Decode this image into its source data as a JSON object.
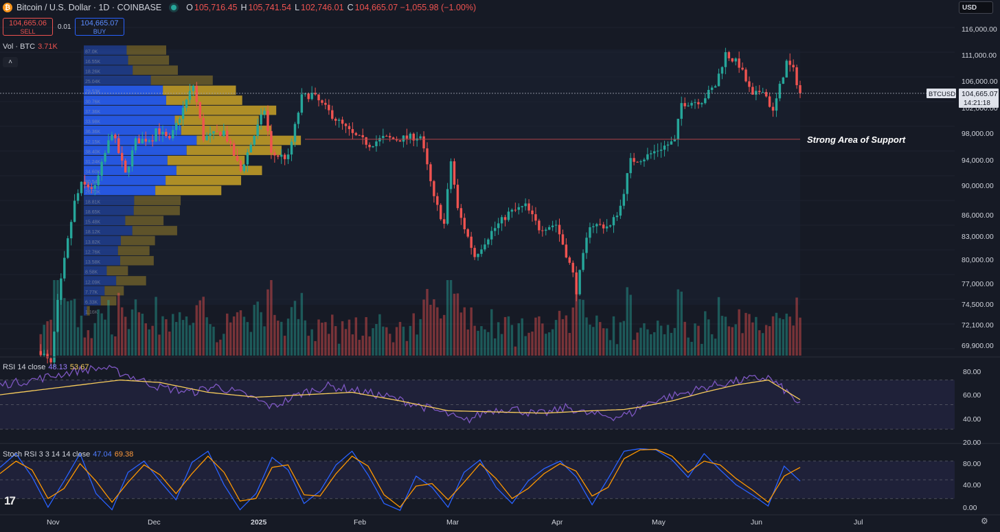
{
  "header": {
    "logo_letter": "₿",
    "symbol": "Bitcoin / U.S. Dollar · 1D · COINBASE",
    "ohlc": [
      {
        "key": "O",
        "value": "105,716.45"
      },
      {
        "key": "H",
        "value": "105,741.54"
      },
      {
        "key": "L",
        "value": "102,746.01"
      },
      {
        "key": "C",
        "value": "104,665.07 −1,055.98 (−1.00%)"
      }
    ]
  },
  "trade": {
    "sell_price": "104,665.06",
    "sell_label": "SELL",
    "spread": "0.01",
    "buy_price": "104,665.07",
    "buy_label": "BUY"
  },
  "volume_label": {
    "name": "Vol · BTC",
    "value": "3.71K"
  },
  "collapse_icon": "˄",
  "currency_button": "USD",
  "price_tag": {
    "symbol": "BTCUSD",
    "price": "104,665.07",
    "countdown": "14:21:18"
  },
  "annotation": "Strong Area of Support",
  "rsi_label": {
    "name": "RSI 14 close",
    "rsi": "48.13",
    "ma": "53.67"
  },
  "stoch_label": {
    "name": "Stoch RSI 3 3 14 14 close",
    "k": "47.04",
    "d": "69.38"
  },
  "tv_logo": "17",
  "settings_icon": "⚙",
  "colors": {
    "up": "#26a69a",
    "down": "#ef5350",
    "background": "#161a25",
    "rsi": "#7e57c2",
    "rsi_ma": "#f9cd5c",
    "stoch_k": "#2962ff",
    "stoch_d": "#ff9800",
    "vp_up": "#2962ff",
    "vp_down": "#c9a227",
    "support": "#b2434a"
  },
  "chart_data": [
    {
      "type": "candlestick",
      "title": "Bitcoin / U.S. Dollar · 1D · COINBASE",
      "y_scale": "log",
      "x_tick_labels": [
        "Nov",
        "Dec",
        "2025",
        "Feb",
        "Mar",
        "Apr",
        "May",
        "Jun",
        "Jul"
      ],
      "y_tick_labels": [
        "116,000.00",
        "111,000.00",
        "106,000.00",
        "102,000.00",
        "98,000.00",
        "94,000.00",
        "90,000.00",
        "86,000.00",
        "83,000.00",
        "80,000.00",
        "77,000.00",
        "74,500.00",
        "72,100.00",
        "69,900.00"
      ],
      "ylim": [
        69000,
        118000
      ],
      "last_price": 104665.07,
      "support_level": 97300,
      "anchors": [
        [
          "2024-11-01",
          69500
        ],
        [
          "2024-11-04",
          68000
        ],
        [
          "2024-11-06",
          75000
        ],
        [
          "2024-11-11",
          88000
        ],
        [
          "2024-11-13",
          90500
        ],
        [
          "2024-11-17",
          90000
        ],
        [
          "2024-11-22",
          98500
        ],
        [
          "2024-11-26",
          92000
        ],
        [
          "2024-11-29",
          97000
        ],
        [
          "2024-12-04",
          97500
        ],
        [
          "2024-12-05",
          99000
        ],
        [
          "2024-12-09",
          97000
        ],
        [
          "2024-12-16",
          106000
        ],
        [
          "2024-12-19",
          97500
        ],
        [
          "2024-12-25",
          98500
        ],
        [
          "2024-12-30",
          92500
        ],
        [
          "2025-01-06",
          102000
        ],
        [
          "2025-01-08",
          95000
        ],
        [
          "2025-01-13",
          94500
        ],
        [
          "2025-01-17",
          104000
        ],
        [
          "2025-01-20",
          104500
        ],
        [
          "2025-01-27",
          100500
        ],
        [
          "2025-02-01",
          98000
        ],
        [
          "2025-02-06",
          96500
        ],
        [
          "2025-02-10",
          97500
        ],
        [
          "2025-02-14",
          97300
        ],
        [
          "2025-02-21",
          97800
        ],
        [
          "2025-02-25",
          88500
        ],
        [
          "2025-02-28",
          85000
        ],
        [
          "2025-03-02",
          94000
        ],
        [
          "2025-03-04",
          87000
        ],
        [
          "2025-03-09",
          80800
        ],
        [
          "2025-03-14",
          84000
        ],
        [
          "2025-03-19",
          86500
        ],
        [
          "2025-03-24",
          87500
        ],
        [
          "2025-03-28",
          84500
        ],
        [
          "2025-04-02",
          85000
        ],
        [
          "2025-04-07",
          78500
        ],
        [
          "2025-04-08",
          76500
        ],
        [
          "2025-04-12",
          85000
        ],
        [
          "2025-04-18",
          84700
        ],
        [
          "2025-04-21",
          87500
        ],
        [
          "2025-04-24",
          94000
        ],
        [
          "2025-04-28",
          94500
        ],
        [
          "2025-05-03",
          96000
        ],
        [
          "2025-05-07",
          97000
        ],
        [
          "2025-05-09",
          103000
        ],
        [
          "2025-05-15",
          103500
        ],
        [
          "2025-05-19",
          106000
        ],
        [
          "2025-05-22",
          111500
        ],
        [
          "2025-05-26",
          109500
        ],
        [
          "2025-05-30",
          104000
        ],
        [
          "2025-06-02",
          105500
        ],
        [
          "2025-06-05",
          101500
        ],
        [
          "2025-06-09",
          110000
        ],
        [
          "2025-06-11",
          108500
        ],
        [
          "2025-06-13",
          104665
        ]
      ],
      "volume_profile_rows": [
        "87.0K",
        "16.55K",
        "18.26K",
        "25.04K",
        "29.53K",
        "30.76K",
        "37.36K",
        "33.98K",
        "36.36K",
        "42.15K",
        "38.40K",
        "31.24K",
        "34.60K",
        "30.54K",
        "26.70K",
        "18.81K",
        "18.65K",
        "15.48K",
        "18.12K",
        "13.82K",
        "12.76K",
        "13.58K",
        "8.58K",
        "12.09K",
        "7.77K",
        "6.33K",
        "1.16K"
      ]
    },
    {
      "type": "line",
      "title": "RSI 14 close",
      "y_tick_labels": [
        "80.00",
        "60.00",
        "40.00",
        "20.00"
      ],
      "ylim": [
        20,
        86
      ],
      "bands": [
        70,
        50,
        30
      ],
      "series": [
        {
          "name": "RSI 14 close",
          "anchors": [
            [
              0,
              66
            ],
            [
              0.04,
              70
            ],
            [
              0.07,
              74
            ],
            [
              0.1,
              78
            ],
            [
              0.13,
              80
            ],
            [
              0.16,
              74
            ],
            [
              0.2,
              64
            ],
            [
              0.24,
              60
            ],
            [
              0.27,
              65
            ],
            [
              0.31,
              57
            ],
            [
              0.34,
              48
            ],
            [
              0.38,
              60
            ],
            [
              0.41,
              65
            ],
            [
              0.44,
              62
            ],
            [
              0.48,
              57
            ],
            [
              0.51,
              52
            ],
            [
              0.53,
              48
            ],
            [
              0.56,
              42
            ],
            [
              0.58,
              36
            ],
            [
              0.61,
              45
            ],
            [
              0.64,
              47
            ],
            [
              0.67,
              42
            ],
            [
              0.69,
              44
            ],
            [
              0.71,
              48
            ],
            [
              0.73,
              43
            ],
            [
              0.77,
              40
            ],
            [
              0.79,
              43
            ],
            [
              0.8,
              48
            ],
            [
              0.82,
              54
            ],
            [
              0.84,
              57
            ],
            [
              0.86,
              60
            ],
            [
              0.88,
              64
            ],
            [
              0.91,
              68
            ],
            [
              0.94,
              71
            ],
            [
              0.96,
              72
            ],
            [
              0.98,
              62
            ],
            [
              1,
              50
            ]
          ]
        },
        {
          "name": "MA",
          "anchors": [
            [
              0,
              58
            ],
            [
              0.05,
              62
            ],
            [
              0.1,
              66
            ],
            [
              0.15,
              70
            ],
            [
              0.2,
              68
            ],
            [
              0.26,
              60
            ],
            [
              0.32,
              56
            ],
            [
              0.38,
              58
            ],
            [
              0.44,
              60
            ],
            [
              0.5,
              53
            ],
            [
              0.56,
              45
            ],
            [
              0.62,
              44
            ],
            [
              0.68,
              43
            ],
            [
              0.74,
              45
            ],
            [
              0.78,
              46
            ],
            [
              0.8,
              48
            ],
            [
              0.84,
              53
            ],
            [
              0.88,
              60
            ],
            [
              0.92,
              66
            ],
            [
              0.96,
              70
            ],
            [
              1,
              54
            ]
          ]
        }
      ]
    },
    {
      "type": "line",
      "title": "Stoch RSI 3 3 14 14 close",
      "y_tick_labels": [
        "80.00",
        "40.00",
        "0.00"
      ],
      "ylim": [
        -4,
        104
      ],
      "bands": [
        80,
        50,
        20
      ],
      "series": [
        {
          "name": "K",
          "anchors": [
            [
              0,
              70
            ],
            [
              0.02,
              92
            ],
            [
              0.04,
              55
            ],
            [
              0.06,
              6
            ],
            [
              0.08,
              48
            ],
            [
              0.1,
              92
            ],
            [
              0.12,
              28
            ],
            [
              0.14,
              2
            ],
            [
              0.16,
              62
            ],
            [
              0.18,
              80
            ],
            [
              0.2,
              48
            ],
            [
              0.22,
              18
            ],
            [
              0.24,
              78
            ],
            [
              0.26,
              96
            ],
            [
              0.28,
              42
            ],
            [
              0.3,
              2
            ],
            [
              0.32,
              28
            ],
            [
              0.34,
              86
            ],
            [
              0.36,
              66
            ],
            [
              0.38,
              12
            ],
            [
              0.4,
              32
            ],
            [
              0.42,
              74
            ],
            [
              0.44,
              96
            ],
            [
              0.46,
              58
            ],
            [
              0.48,
              12
            ],
            [
              0.5,
              1
            ],
            [
              0.52,
              56
            ],
            [
              0.54,
              38
            ],
            [
              0.56,
              6
            ],
            [
              0.58,
              62
            ],
            [
              0.6,
              82
            ],
            [
              0.62,
              38
            ],
            [
              0.64,
              12
            ],
            [
              0.66,
              48
            ],
            [
              0.68,
              68
            ],
            [
              0.7,
              80
            ],
            [
              0.72,
              55
            ],
            [
              0.74,
              10
            ],
            [
              0.76,
              52
            ],
            [
              0.78,
              96
            ],
            [
              0.8,
              100
            ],
            [
              0.82,
              98
            ],
            [
              0.84,
              82
            ],
            [
              0.86,
              54
            ],
            [
              0.88,
              92
            ],
            [
              0.9,
              66
            ],
            [
              0.92,
              42
            ],
            [
              0.94,
              26
            ],
            [
              0.96,
              8
            ],
            [
              0.98,
              72
            ],
            [
              1,
              48
            ]
          ]
        },
        {
          "name": "D",
          "anchors": [
            [
              0,
              60
            ],
            [
              0.02,
              80
            ],
            [
              0.04,
              66
            ],
            [
              0.06,
              20
            ],
            [
              0.08,
              36
            ],
            [
              0.1,
              76
            ],
            [
              0.12,
              48
            ],
            [
              0.14,
              14
            ],
            [
              0.16,
              46
            ],
            [
              0.18,
              74
            ],
            [
              0.2,
              58
            ],
            [
              0.22,
              28
            ],
            [
              0.24,
              60
            ],
            [
              0.26,
              88
            ],
            [
              0.28,
              62
            ],
            [
              0.3,
              16
            ],
            [
              0.32,
              20
            ],
            [
              0.34,
              70
            ],
            [
              0.36,
              74
            ],
            [
              0.38,
              26
            ],
            [
              0.4,
              24
            ],
            [
              0.42,
              60
            ],
            [
              0.44,
              88
            ],
            [
              0.46,
              72
            ],
            [
              0.48,
              26
            ],
            [
              0.5,
              6
            ],
            [
              0.52,
              40
            ],
            [
              0.54,
              44
            ],
            [
              0.56,
              18
            ],
            [
              0.58,
              46
            ],
            [
              0.6,
              76
            ],
            [
              0.62,
              52
            ],
            [
              0.64,
              20
            ],
            [
              0.66,
              36
            ],
            [
              0.68,
              60
            ],
            [
              0.7,
              76
            ],
            [
              0.72,
              64
            ],
            [
              0.74,
              24
            ],
            [
              0.76,
              38
            ],
            [
              0.78,
              84
            ],
            [
              0.8,
              98
            ],
            [
              0.82,
              99
            ],
            [
              0.84,
              88
            ],
            [
              0.86,
              62
            ],
            [
              0.88,
              80
            ],
            [
              0.9,
              74
            ],
            [
              0.92,
              52
            ],
            [
              0.94,
              34
            ],
            [
              0.96,
              14
            ],
            [
              0.98,
              56
            ],
            [
              1,
              70
            ]
          ]
        }
      ]
    }
  ]
}
